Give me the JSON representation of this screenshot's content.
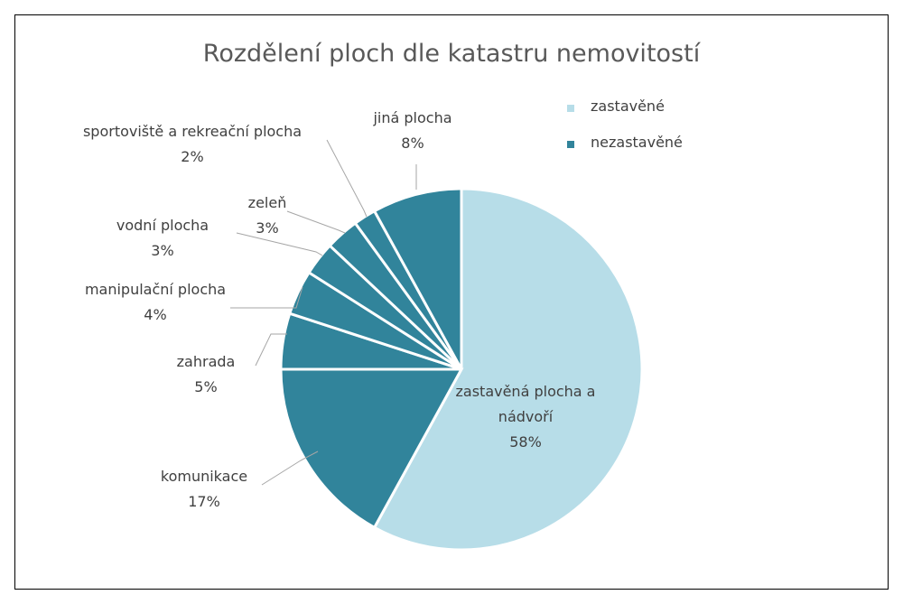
{
  "chart_data": {
    "type": "pie",
    "title": "Rozdělení ploch dle katastru nemovitostí",
    "categories": [
      "zastavěná plocha a nádvoří",
      "komunikace",
      "zahrada",
      "manipulační plocha",
      "vodní plocha",
      "zeleň",
      "sportoviště a rekreační plocha",
      "jiná plocha"
    ],
    "values": [
      58,
      17,
      5,
      4,
      3,
      3,
      2,
      8
    ],
    "value_labels": [
      "58%",
      "17%",
      "5%",
      "4%",
      "3%",
      "3%",
      "2%",
      "8%"
    ],
    "colors": [
      "#b7dde8",
      "#31849b",
      "#31849b",
      "#31849b",
      "#31849b",
      "#31849b",
      "#31849b",
      "#31849b"
    ],
    "legend": [
      {
        "name": "zastavěné",
        "color": "#b7dde8"
      },
      {
        "name": "nezastavěné",
        "color": "#31849b"
      }
    ]
  }
}
